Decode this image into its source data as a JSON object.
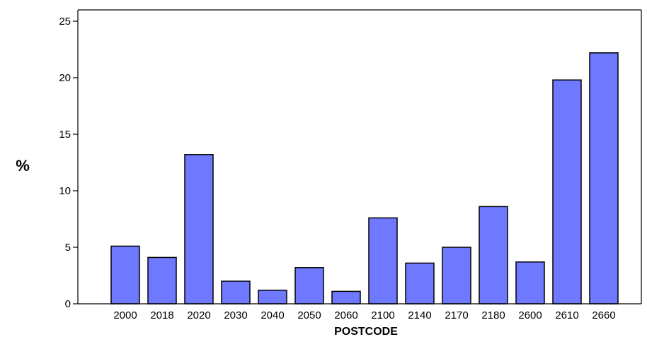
{
  "chart_data": {
    "type": "bar",
    "title": "",
    "xlabel": "POSTCODE",
    "ylabel": "%",
    "categories": [
      "2000",
      "2018",
      "2020",
      "2030",
      "2040",
      "2050",
      "2060",
      "2100",
      "2140",
      "2170",
      "2180",
      "2600",
      "2610",
      "2660"
    ],
    "values": [
      5.1,
      4.1,
      13.2,
      2.0,
      1.2,
      3.2,
      1.1,
      7.6,
      3.6,
      5.0,
      8.6,
      3.7,
      19.8,
      22.2
    ],
    "ylim": [
      0,
      26
    ],
    "yticks": [
      "0",
      "5",
      "10",
      "15",
      "20",
      "25"
    ],
    "grid": false,
    "legend": "none",
    "colors": {
      "bar_fill": "#6f79ff",
      "bar_stroke": "#000000",
      "axis": "#000000",
      "background": "#ffffff"
    }
  }
}
